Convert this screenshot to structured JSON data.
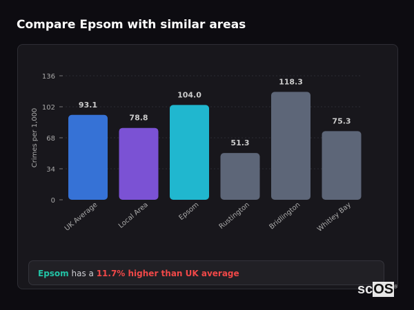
{
  "header": {
    "title": "Compare Epsom with similar areas"
  },
  "chart_data": {
    "type": "bar",
    "categories": [
      "UK Average",
      "Local Area",
      "Epsom",
      "Rustington",
      "Bridlington",
      "Whitley Bay"
    ],
    "values": [
      93.1,
      78.8,
      104.0,
      51.3,
      118.3,
      75.3
    ],
    "value_labels": [
      "93.1",
      "78.8",
      "104.0",
      "51.3",
      "118.3",
      "75.3"
    ],
    "colors": [
      "#3672d6",
      "#7b52d4",
      "#20b7cf",
      "#5d6678",
      "#5d6678",
      "#5d6678"
    ],
    "ylabel": "Crimes per 1,000",
    "yticks": [
      0,
      34,
      68,
      102,
      136
    ],
    "ylim": [
      0,
      136
    ],
    "grid": true
  },
  "footer": {
    "area": "Epsom",
    "middle": " has a ",
    "comparison": "11.7% higher than UK average"
  },
  "logo": {
    "text_a": "sc",
    "text_b": "OS",
    "mark": "®"
  }
}
